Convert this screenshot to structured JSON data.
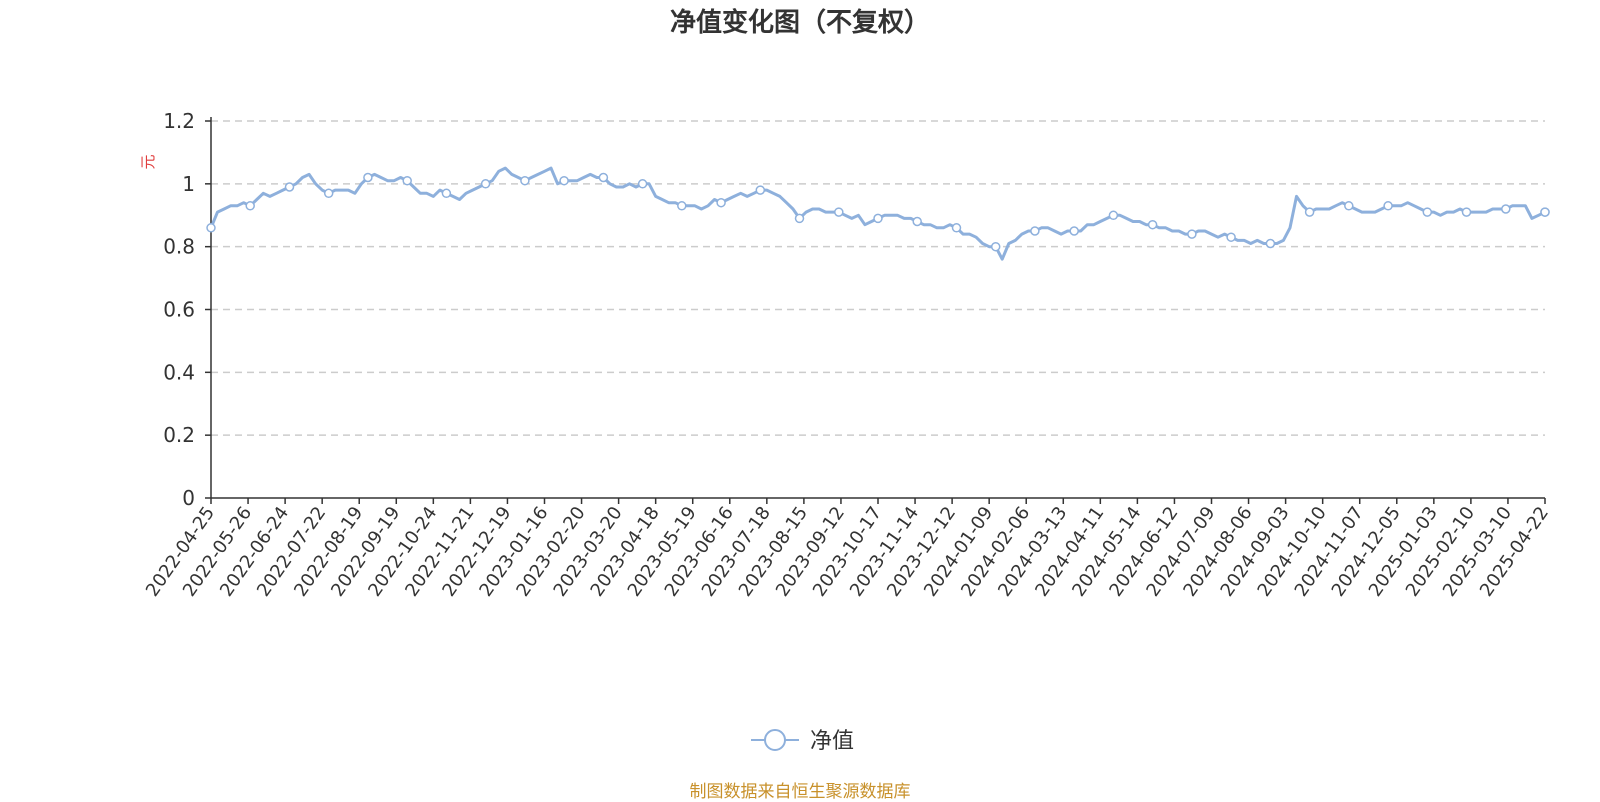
{
  "chart_data": {
    "type": "line",
    "title": "净值变化图（不复权）",
    "ylabel": "元",
    "ylim": [
      0,
      1.2
    ],
    "y_ticks": [
      "0",
      "0.2",
      "0.4",
      "0.6",
      "0.8",
      "1",
      "1.2"
    ],
    "grid": true,
    "legend_position": "bottom",
    "x_ticks": [
      "2022-04-25",
      "2022-05-26",
      "2022-06-24",
      "2022-07-22",
      "2022-08-19",
      "2022-09-19",
      "2022-10-24",
      "2022-11-21",
      "2022-12-19",
      "2023-01-16",
      "2023-02-20",
      "2023-03-20",
      "2023-04-18",
      "2023-05-19",
      "2023-06-16",
      "2023-07-18",
      "2023-08-15",
      "2023-09-12",
      "2023-10-17",
      "2023-11-14",
      "2023-12-12",
      "2024-01-09",
      "2024-02-06",
      "2024-03-13",
      "2024-04-11",
      "2024-05-14",
      "2024-06-12",
      "2024-07-09",
      "2024-08-06",
      "2024-09-03",
      "2024-10-10",
      "2024-11-07",
      "2024-12-05",
      "2025-01-03",
      "2025-02-10",
      "2025-03-10",
      "2025-04-22"
    ],
    "series": [
      {
        "name": "净值",
        "color": "#8eb0dc",
        "values": [
          0.86,
          0.91,
          0.92,
          0.93,
          0.93,
          0.94,
          0.93,
          0.95,
          0.97,
          0.96,
          0.97,
          0.98,
          0.99,
          1.0,
          1.02,
          1.03,
          1.0,
          0.98,
          0.97,
          0.98,
          0.98,
          0.98,
          0.97,
          1.0,
          1.02,
          1.03,
          1.02,
          1.01,
          1.01,
          1.02,
          1.01,
          0.99,
          0.97,
          0.97,
          0.96,
          0.98,
          0.97,
          0.96,
          0.95,
          0.97,
          0.98,
          0.99,
          1.0,
          1.01,
          1.04,
          1.05,
          1.03,
          1.02,
          1.01,
          1.02,
          1.03,
          1.04,
          1.05,
          1.0,
          1.01,
          1.01,
          1.01,
          1.02,
          1.03,
          1.02,
          1.02,
          1.0,
          0.99,
          0.99,
          1.0,
          0.99,
          1.0,
          1.0,
          0.96,
          0.95,
          0.94,
          0.94,
          0.93,
          0.93,
          0.93,
          0.92,
          0.93,
          0.95,
          0.94,
          0.95,
          0.96,
          0.97,
          0.96,
          0.97,
          0.98,
          0.98,
          0.97,
          0.96,
          0.94,
          0.92,
          0.89,
          0.91,
          0.92,
          0.92,
          0.91,
          0.91,
          0.91,
          0.9,
          0.89,
          0.9,
          0.87,
          0.88,
          0.89,
          0.9,
          0.9,
          0.9,
          0.89,
          0.89,
          0.88,
          0.87,
          0.87,
          0.86,
          0.86,
          0.87,
          0.86,
          0.84,
          0.84,
          0.83,
          0.81,
          0.8,
          0.8,
          0.76,
          0.81,
          0.82,
          0.84,
          0.85,
          0.85,
          0.86,
          0.86,
          0.85,
          0.84,
          0.85,
          0.85,
          0.85,
          0.87,
          0.87,
          0.88,
          0.89,
          0.9,
          0.9,
          0.89,
          0.88,
          0.88,
          0.87,
          0.87,
          0.86,
          0.86,
          0.85,
          0.85,
          0.84,
          0.84,
          0.85,
          0.85,
          0.84,
          0.83,
          0.84,
          0.83,
          0.82,
          0.82,
          0.81,
          0.82,
          0.81,
          0.81,
          0.81,
          0.82,
          0.86,
          0.96,
          0.93,
          0.91,
          0.92,
          0.92,
          0.92,
          0.93,
          0.94,
          0.93,
          0.92,
          0.91,
          0.91,
          0.91,
          0.92,
          0.93,
          0.93,
          0.93,
          0.94,
          0.93,
          0.92,
          0.91,
          0.91,
          0.9,
          0.91,
          0.91,
          0.92,
          0.91,
          0.91,
          0.91,
          0.91,
          0.92,
          0.92,
          0.92,
          0.93,
          0.93,
          0.93,
          0.89,
          0.9,
          0.91
        ]
      }
    ]
  },
  "footer": {
    "source_note": "制图数据来自恒生聚源数据库"
  }
}
